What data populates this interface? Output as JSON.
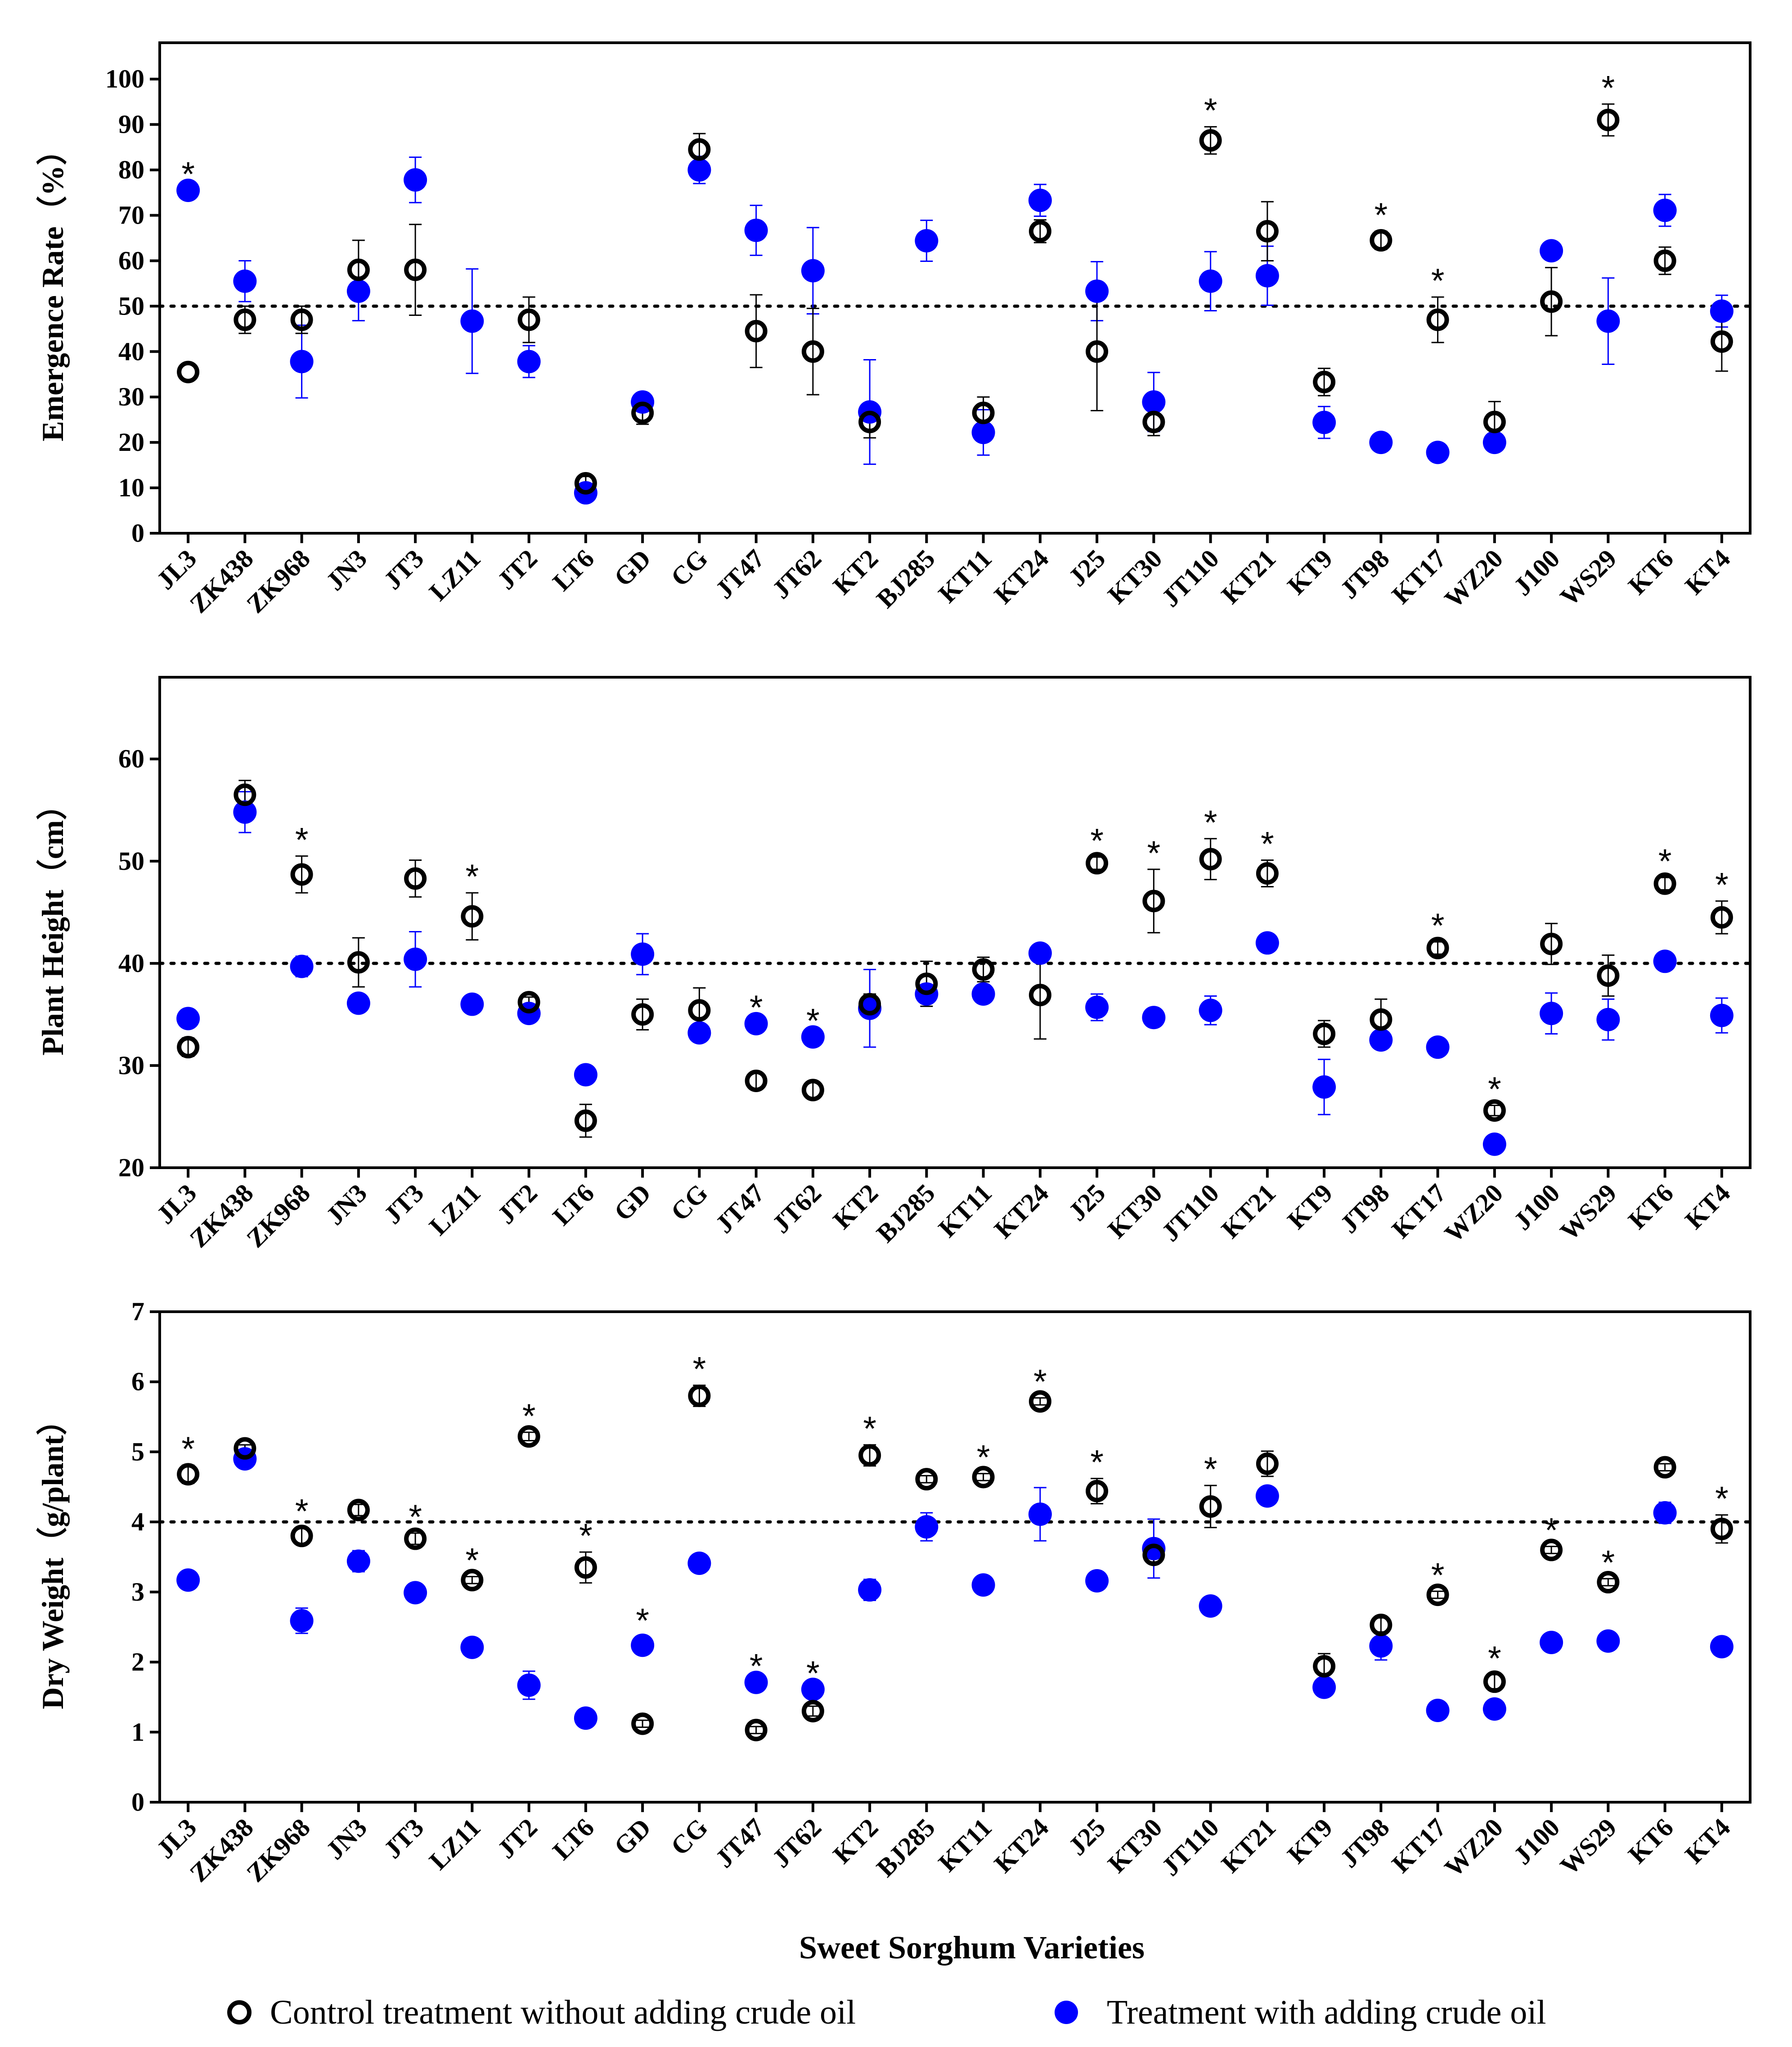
{
  "chart_data": [
    {
      "type": "scatter",
      "ylabel": "Emergence Rate（%）",
      "xlabel": "",
      "ylim": [
        0,
        108
      ],
      "yticks": [
        0,
        10,
        20,
        30,
        40,
        50,
        60,
        70,
        80,
        90,
        100
      ],
      "reference_line": 50,
      "categories": [
        "JL3",
        "ZK438",
        "ZK968",
        "JN3",
        "JT3",
        "LZ11",
        "JT2",
        "LT6",
        "GD",
        "CG",
        "JT47",
        "JT62",
        "KT2",
        "BJ285",
        "KT11",
        "KT24",
        "J25",
        "KT30",
        "JT110",
        "KT21",
        "KT9",
        "JT98",
        "KT17",
        "WZ20",
        "J100",
        "WS29",
        "KT6",
        "KT4"
      ],
      "series": [
        {
          "name": "Control treatment without adding crude oil",
          "marker": "open-circle",
          "color": "#000000",
          "values": [
            35.5,
            47,
            47,
            58,
            58,
            null,
            47,
            11,
            26.5,
            84.5,
            44.5,
            40,
            24.5,
            null,
            26.5,
            66.5,
            40,
            24.5,
            86.5,
            66.5,
            33.3,
            64.5,
            47,
            24.5,
            51,
            91,
            60,
            42.2
          ],
          "errors": [
            0,
            3,
            3,
            6.5,
            10,
            0,
            5,
            1.5,
            2.5,
            3.5,
            8,
            9.5,
            3.5,
            0,
            3.5,
            2.5,
            13,
            3,
            3,
            6.5,
            3,
            2,
            5,
            4.5,
            7.5,
            3.5,
            3,
            6.5
          ]
        },
        {
          "name": "Treatment with adding crude oil",
          "marker": "filled-circle",
          "color": "#0000ff",
          "values": [
            75.5,
            55.5,
            37.8,
            53.3,
            77.8,
            46.7,
            37.8,
            8.9,
            28.9,
            80,
            66.7,
            57.8,
            26.7,
            64.4,
            22.2,
            73.3,
            53.3,
            28.9,
            55.5,
            56.7,
            24.4,
            20,
            17.8,
            20,
            62.2,
            46.7,
            71.1,
            48.9
          ],
          "errors": [
            0,
            4.5,
            8,
            6.5,
            5,
            11.5,
            3.5,
            0,
            0,
            3,
            5.5,
            9.5,
            11.5,
            4.5,
            5,
            3.5,
            6.5,
            6.5,
            6.5,
            6.5,
            3.5,
            0,
            0,
            0,
            0,
            9.5,
            3.5,
            3.5
          ]
        }
      ],
      "significant": [
        "JL3",
        "JT110",
        "JT98",
        "KT17",
        "WS29"
      ]
    },
    {
      "type": "scatter",
      "ylabel": "Plant Height（cm）",
      "xlabel": "",
      "ylim": [
        20,
        68
      ],
      "yticks": [
        20,
        30,
        40,
        50,
        60
      ],
      "reference_line": 40,
      "categories": [
        "JL3",
        "ZK438",
        "ZK968",
        "JN3",
        "JT3",
        "LZ11",
        "JT2",
        "LT6",
        "GD",
        "CG",
        "JT47",
        "JT62",
        "KT2",
        "BJ285",
        "KT11",
        "KT24",
        "J25",
        "KT30",
        "JT110",
        "KT21",
        "KT9",
        "JT98",
        "KT17",
        "WZ20",
        "J100",
        "WS29",
        "KT6",
        "KT4"
      ],
      "series": [
        {
          "name": "Control treatment without adding crude oil",
          "marker": "open-circle",
          "color": "#000000",
          "values": [
            31.8,
            56.5,
            48.7,
            40.1,
            48.3,
            44.6,
            36.2,
            24.6,
            35,
            35.4,
            28.5,
            27.6,
            36,
            38,
            39.4,
            36.9,
            49.8,
            46.1,
            50.2,
            48.8,
            33.1,
            34.5,
            41.5,
            25.6,
            41.9,
            38.8,
            47.8,
            44.5
          ],
          "errors": [
            0.9,
            1.4,
            1.8,
            2.4,
            1.8,
            2.3,
            0.5,
            1.6,
            1.5,
            2.2,
            0.8,
            0.8,
            1,
            2.2,
            1.2,
            4.3,
            0.6,
            3.1,
            2,
            1.3,
            1.3,
            2,
            0.6,
            0.5,
            2,
            2,
            0.6,
            1.6
          ]
        },
        {
          "name": "Treatment with adding crude oil",
          "marker": "filled-circle",
          "color": "#0000ff",
          "values": [
            34.6,
            54.8,
            39.7,
            36.1,
            40.4,
            36,
            35.1,
            29.1,
            40.9,
            33.2,
            34.1,
            32.8,
            35.6,
            37,
            37,
            41,
            35.7,
            34.7,
            35.4,
            42,
            27.9,
            32.5,
            31.8,
            22.3,
            35.1,
            34.5,
            40.2,
            34.9
          ],
          "errors": [
            0,
            2,
            1,
            0,
            2.7,
            0,
            0,
            0,
            2,
            0,
            0,
            0,
            3.8,
            0,
            0,
            0,
            1.3,
            0,
            1.4,
            0,
            2.7,
            0,
            0,
            0,
            2,
            2,
            0,
            1.7
          ]
        }
      ],
      "significant": [
        "ZK968",
        "LZ11",
        "JT47",
        "JT62",
        "J25",
        "KT30",
        "JT110",
        "KT21",
        "KT17",
        "WZ20",
        "KT6",
        "KT4"
      ]
    },
    {
      "type": "scatter",
      "ylabel": "Dry Weight（g/plant）",
      "xlabel": "Sweet Sorghum Varieties",
      "ylim": [
        0,
        7
      ],
      "yticks": [
        0,
        1,
        2,
        3,
        4,
        5,
        6,
        7
      ],
      "reference_line": 4,
      "categories": [
        "JL3",
        "ZK438",
        "ZK968",
        "JN3",
        "JT3",
        "LZ11",
        "JT2",
        "LT6",
        "GD",
        "CG",
        "JT47",
        "JT62",
        "KT2",
        "BJ285",
        "KT11",
        "KT24",
        "J25",
        "KT30",
        "JT110",
        "KT21",
        "KT9",
        "JT98",
        "KT17",
        "WZ20",
        "J100",
        "WS29",
        "KT6",
        "KT4"
      ],
      "series": [
        {
          "name": "Control treatment without adding crude oil",
          "marker": "open-circle",
          "color": "#000000",
          "values": [
            4.68,
            5.05,
            3.8,
            4.17,
            3.76,
            3.17,
            5.22,
            3.35,
            1.12,
            5.8,
            1.03,
            1.3,
            4.95,
            4.61,
            4.64,
            5.72,
            4.44,
            3.53,
            4.22,
            4.83,
            1.94,
            2.53,
            2.96,
            1.72,
            3.6,
            3.14,
            4.78,
            3.9
          ],
          "errors": [
            0.13,
            0.05,
            0.12,
            0.08,
            0.08,
            0.05,
            0.06,
            0.22,
            0.05,
            0.15,
            0.05,
            0.07,
            0.15,
            0.05,
            0.05,
            0.05,
            0.18,
            0.1,
            0.3,
            0.18,
            0.18,
            0.1,
            0.05,
            0.1,
            0.05,
            0.05,
            0.05,
            0.2
          ]
        },
        {
          "name": "Treatment with adding crude oil",
          "marker": "filled-circle",
          "color": "#0000ff",
          "values": [
            3.17,
            4.9,
            2.59,
            3.44,
            2.99,
            2.21,
            1.67,
            1.2,
            2.24,
            3.41,
            1.71,
            1.61,
            3.03,
            3.93,
            3.1,
            4.11,
            3.16,
            3.62,
            2.8,
            4.37,
            1.64,
            2.23,
            1.31,
            1.33,
            2.28,
            2.3,
            4.13,
            2.22
          ],
          "errors": [
            0,
            0,
            0.18,
            0.15,
            0,
            0,
            0.2,
            0,
            0.12,
            0,
            0,
            0,
            0.15,
            0.2,
            0,
            0.38,
            0,
            0.42,
            0,
            0,
            0,
            0.2,
            0,
            0,
            0,
            0.12,
            0.15,
            0
          ]
        }
      ],
      "significant": [
        "JL3",
        "ZK968",
        "JT3",
        "LZ11",
        "JT2",
        "LT6",
        "GD",
        "CG",
        "JT47",
        "JT62",
        "KT2",
        "KT11",
        "KT24",
        "J25",
        "JT110",
        "KT17",
        "WZ20",
        "J100",
        "WS29",
        "KT4"
      ]
    }
  ],
  "legend": {
    "items": [
      {
        "label": "Control treatment without adding crude oil",
        "marker": "open-circle",
        "color": "#000000"
      },
      {
        "label": "Treatment with adding crude oil",
        "marker": "filled-circle",
        "color": "#0000ff"
      }
    ],
    "position": "bottom"
  },
  "significance_symbol": "*"
}
